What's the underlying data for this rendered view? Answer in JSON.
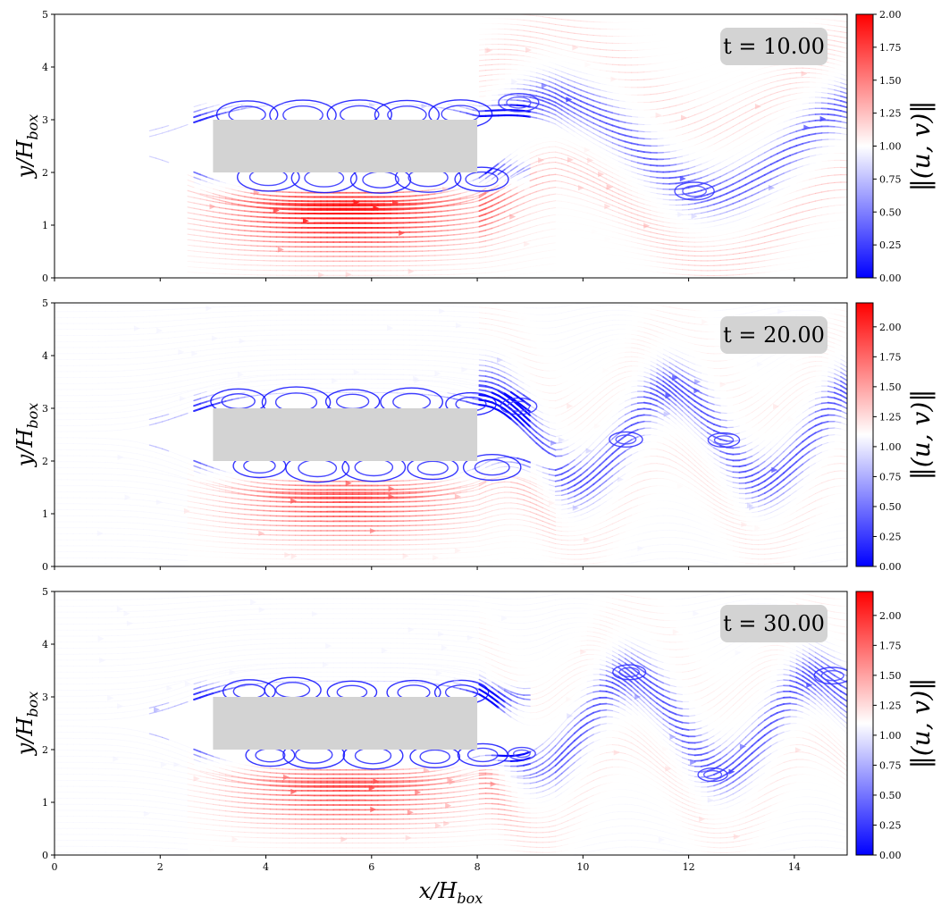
{
  "chart_data": [
    {
      "type": "streamline",
      "time_label": "t = 10.00",
      "ylabel": "y/H",
      "ylabel_sub": "box",
      "xlim": [
        0,
        15
      ],
      "ylim": [
        0,
        5
      ],
      "obstacle": {
        "x0": 3,
        "x1": 8,
        "y0": 2,
        "y1": 3
      },
      "colorbar": {
        "label": "‖(u, v)‖",
        "min": 0,
        "max": 2.0,
        "ticks": [
          "0.00",
          "0.25",
          "0.50",
          "0.75",
          "1.00",
          "1.25",
          "1.50",
          "1.75",
          "2.00"
        ]
      },
      "wake_period": 6.0,
      "wake_phase": 0.0
    },
    {
      "type": "streamline",
      "time_label": "t = 20.00",
      "ylabel": "y/H",
      "ylabel_sub": "box",
      "xlim": [
        0,
        15
      ],
      "ylim": [
        0,
        5
      ],
      "obstacle": {
        "x0": 3,
        "x1": 8,
        "y0": 2,
        "y1": 3
      },
      "colorbar": {
        "label": "‖(u, v)‖",
        "min": 0,
        "max": 2.2,
        "ticks": [
          "0.00",
          "0.25",
          "0.50",
          "0.75",
          "1.00",
          "1.25",
          "1.50",
          "1.75",
          "2.00"
        ]
      },
      "wake_period": 3.5,
      "wake_phase": 1.2
    },
    {
      "type": "streamline",
      "time_label": "t = 30.00",
      "ylabel": "y/H",
      "ylabel_sub": "box",
      "xlabel": "x/H",
      "xlabel_sub": "box",
      "xlim": [
        0,
        15
      ],
      "ylim": [
        0,
        5
      ],
      "xticks": [
        "0",
        "2",
        "4",
        "6",
        "8",
        "10",
        "12",
        "14"
      ],
      "obstacle": {
        "x0": 3,
        "x1": 8,
        "y0": 2,
        "y1": 3
      },
      "colorbar": {
        "label": "‖(u, v)‖",
        "min": 0,
        "max": 2.2,
        "ticks": [
          "0.00",
          "0.25",
          "0.50",
          "0.75",
          "1.00",
          "1.25",
          "1.50",
          "1.75",
          "2.00"
        ]
      },
      "wake_period": 3.5,
      "wake_phase": 2.6
    }
  ],
  "yticks": [
    "0",
    "1",
    "2",
    "3",
    "4",
    "5"
  ]
}
